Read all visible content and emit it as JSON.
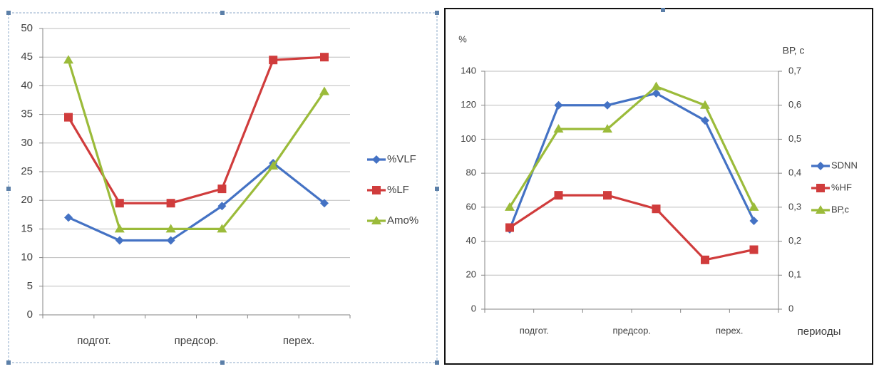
{
  "colors": {
    "blue": "#4472C4",
    "red": "#D03C3C",
    "green": "#9BBB3A",
    "grid": "#BEBEBE",
    "axis": "#868686",
    "text": "#404040",
    "selection_border": "#8EA9C9",
    "frame": "#111111"
  },
  "chart_data": [
    {
      "type": "line",
      "categories": [
        "подгот.",
        "",
        "предсор.",
        "",
        "перех.",
        ""
      ],
      "x_tick_labels": [
        "подгот.",
        "предсор.",
        "перех."
      ],
      "ylim": [
        0,
        50
      ],
      "y_ticks": [
        "0",
        "5",
        "10",
        "15",
        "20",
        "25",
        "30",
        "35",
        "40",
        "45",
        "50"
      ],
      "grid": true,
      "legend_placement": "right",
      "series": [
        {
          "name": "%VLF",
          "color": "#4472C4",
          "marker": "diamond",
          "values": [
            17,
            13,
            13,
            19,
            26.5,
            19.5
          ]
        },
        {
          "name": "%LF",
          "color": "#D03C3C",
          "marker": "square",
          "values": [
            34.5,
            19.5,
            19.5,
            22,
            44.5,
            45
          ]
        },
        {
          "name": "Amo%",
          "color": "#9BBB3A",
          "marker": "triangle",
          "values": [
            44.5,
            15,
            15,
            15,
            26,
            39
          ]
        }
      ]
    },
    {
      "type": "line",
      "categories": [
        "подгот.",
        "",
        "предсор.",
        "",
        "перех.",
        ""
      ],
      "x_tick_labels": [
        "подгот.",
        "предсор.",
        "перех."
      ],
      "xlabel": "периоды",
      "ylabel": "%",
      "ylim": [
        0,
        140
      ],
      "y_ticks": [
        "0",
        "20",
        "40",
        "60",
        "80",
        "100",
        "120",
        "140"
      ],
      "y2label": "ВР, с",
      "y2lim": [
        0,
        0.7
      ],
      "y2_ticks": [
        "0",
        "0,1",
        "0,2",
        "0,3",
        "0,4",
        "0,5",
        "0,6",
        "0,7"
      ],
      "grid": true,
      "legend_placement": "right",
      "series": [
        {
          "name": "SDNN",
          "color": "#4472C4",
          "marker": "diamond",
          "axis": "left",
          "values": [
            47,
            120,
            120,
            127,
            111,
            52
          ]
        },
        {
          "name": "%HF",
          "color": "#D03C3C",
          "marker": "square",
          "axis": "left",
          "values": [
            48,
            67,
            67,
            59,
            29,
            35
          ]
        },
        {
          "name": "ВР,с",
          "color": "#9BBB3A",
          "marker": "triangle",
          "axis": "right",
          "values": [
            0.3,
            0.53,
            0.53,
            0.655,
            0.6,
            0.3
          ]
        }
      ]
    }
  ]
}
